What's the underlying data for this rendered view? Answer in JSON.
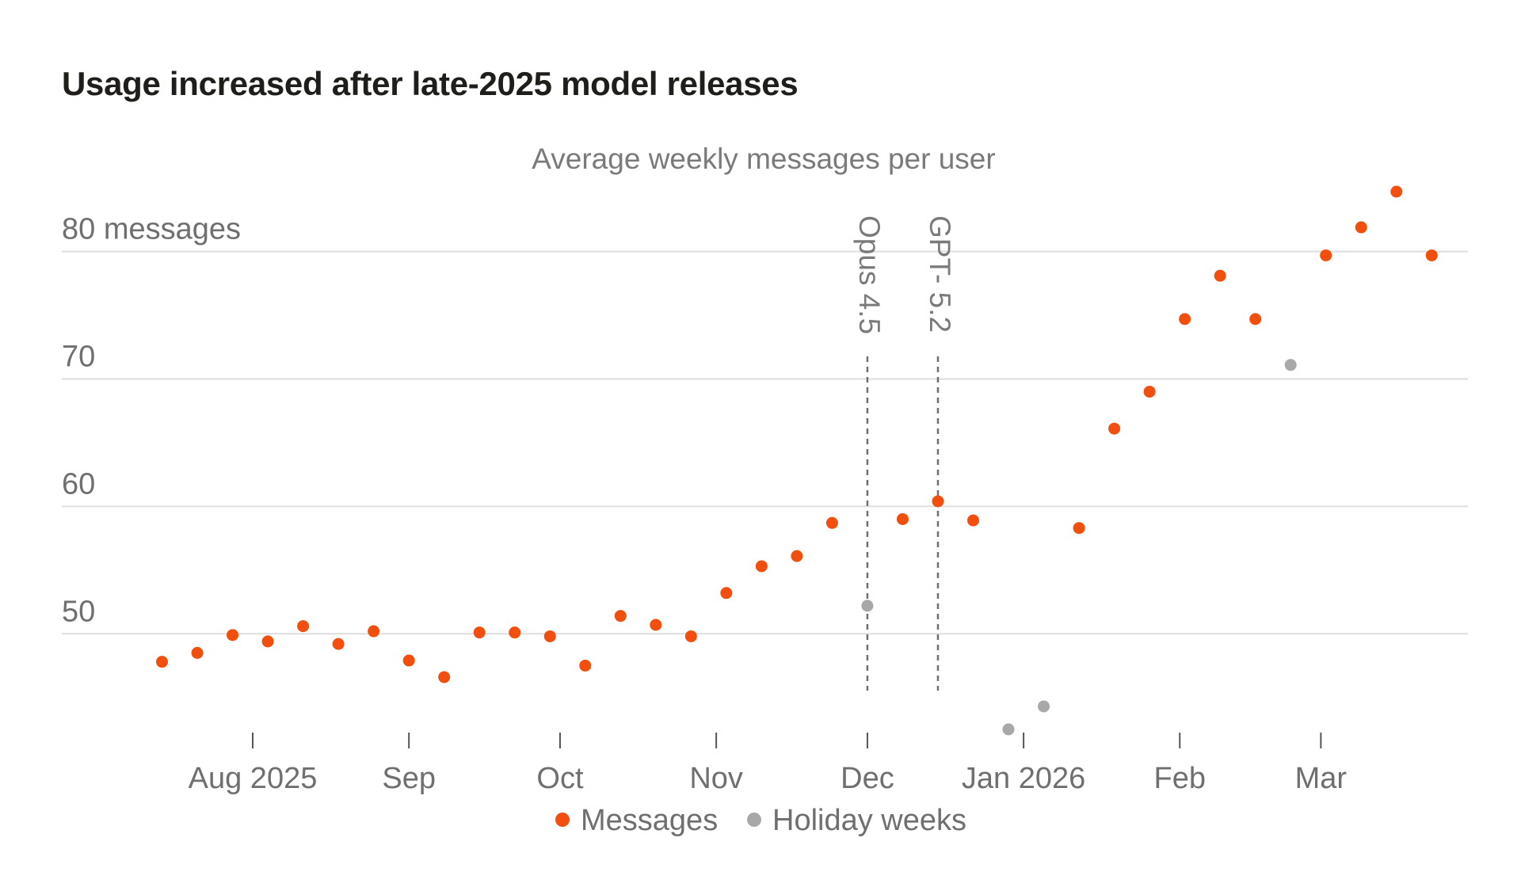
{
  "title": "Usage increased after late-2025 model releases",
  "chart_data": {
    "type": "scatter",
    "subtitle": "Average weekly messages per user",
    "ylim": [
      41.5,
      87
    ],
    "y_ticks": [
      {
        "value": 80,
        "label": "80 messages"
      },
      {
        "value": 70,
        "label": "70"
      },
      {
        "value": 60,
        "label": "60"
      },
      {
        "value": 50,
        "label": "50"
      }
    ],
    "xlim": [
      "2025-07-07",
      "2026-03-25"
    ],
    "x_ticks": [
      {
        "date": "2025-08-01",
        "label": "Aug 2025"
      },
      {
        "date": "2025-09-01",
        "label": "Sep"
      },
      {
        "date": "2025-10-01",
        "label": "Oct"
      },
      {
        "date": "2025-11-01",
        "label": "Nov"
      },
      {
        "date": "2025-12-01",
        "label": "Dec"
      },
      {
        "date": "2026-01-01",
        "label": "Jan 2026"
      },
      {
        "date": "2026-02-01",
        "label": "Feb"
      },
      {
        "date": "2026-03-01",
        "label": "Mar"
      }
    ],
    "grid": true,
    "legend_position": "bottom-center",
    "series": [
      {
        "name": "Messages",
        "color": "#f24e0d",
        "points": [
          {
            "x": "2025-07-14",
            "y": 47.8
          },
          {
            "x": "2025-07-21",
            "y": 48.5
          },
          {
            "x": "2025-07-28",
            "y": 49.9
          },
          {
            "x": "2025-08-04",
            "y": 49.4
          },
          {
            "x": "2025-08-11",
            "y": 50.6
          },
          {
            "x": "2025-08-18",
            "y": 49.2
          },
          {
            "x": "2025-08-25",
            "y": 50.2
          },
          {
            "x": "2025-09-01",
            "y": 47.9
          },
          {
            "x": "2025-09-08",
            "y": 46.6
          },
          {
            "x": "2025-09-15",
            "y": 50.1
          },
          {
            "x": "2025-09-22",
            "y": 50.1
          },
          {
            "x": "2025-09-29",
            "y": 49.8
          },
          {
            "x": "2025-10-06",
            "y": 47.5
          },
          {
            "x": "2025-10-13",
            "y": 51.4
          },
          {
            "x": "2025-10-20",
            "y": 50.7
          },
          {
            "x": "2025-10-27",
            "y": 49.8
          },
          {
            "x": "2025-11-03",
            "y": 53.2
          },
          {
            "x": "2025-11-10",
            "y": 55.3
          },
          {
            "x": "2025-11-17",
            "y": 56.1
          },
          {
            "x": "2025-11-24",
            "y": 58.7
          },
          {
            "x": "2025-12-08",
            "y": 59.0
          },
          {
            "x": "2025-12-15",
            "y": 60.4
          },
          {
            "x": "2025-12-22",
            "y": 58.9
          },
          {
            "x": "2026-01-12",
            "y": 58.3
          },
          {
            "x": "2026-01-19",
            "y": 66.1
          },
          {
            "x": "2026-01-26",
            "y": 69.0
          },
          {
            "x": "2026-02-02",
            "y": 74.7
          },
          {
            "x": "2026-02-09",
            "y": 78.1
          },
          {
            "x": "2026-02-16",
            "y": 74.7
          },
          {
            "x": "2026-03-02",
            "y": 79.7
          },
          {
            "x": "2026-03-09",
            "y": 81.9
          },
          {
            "x": "2026-03-16",
            "y": 84.7
          },
          {
            "x": "2026-03-23",
            "y": 79.7
          }
        ]
      },
      {
        "name": "Holiday weeks",
        "color": "#a8a8a8",
        "points": [
          {
            "x": "2025-12-01",
            "y": 52.2
          },
          {
            "x": "2025-12-29",
            "y": 42.5
          },
          {
            "x": "2026-01-05",
            "y": 44.3
          },
          {
            "x": "2026-02-23",
            "y": 71.1
          }
        ]
      }
    ],
    "annotations": [
      {
        "label": "Opus 4.5",
        "x": "2025-12-01"
      },
      {
        "label": "GPT- 5.2",
        "x": "2025-12-15"
      }
    ]
  }
}
